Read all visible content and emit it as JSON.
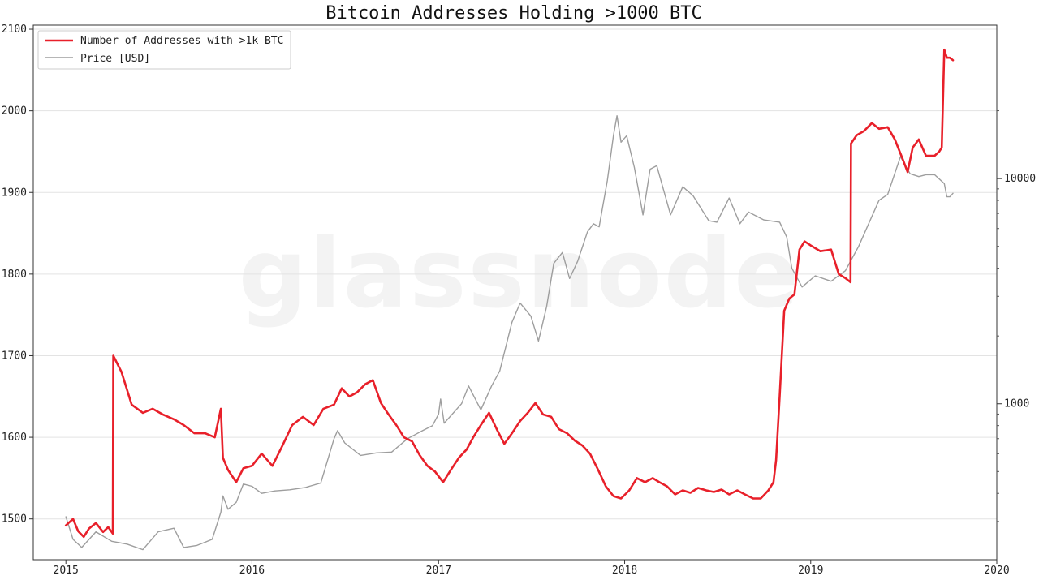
{
  "watermark": "glassnode",
  "chart_data": {
    "type": "line",
    "title": "Bitcoin Addresses Holding >1000 BTC",
    "xlabel": "",
    "ylabel": "",
    "x_ticks": [
      "2015",
      "2016",
      "2017",
      "2018",
      "2019",
      "2020"
    ],
    "xlim": [
      "2014-10-29",
      "2020-01-01"
    ],
    "y_left": {
      "lim": [
        1450,
        2105
      ],
      "ticks": [
        1500,
        1600,
        1700,
        1800,
        1900,
        2000,
        2100
      ]
    },
    "y_right": {
      "scale": "log",
      "lim": [
        203,
        48000
      ],
      "major_ticks": [
        1000,
        10000
      ],
      "minor_ticks": [
        300,
        400,
        500,
        600,
        700,
        800,
        900,
        2000,
        3000,
        4000,
        5000,
        6000,
        7000,
        8000,
        9000,
        20000
      ]
    },
    "grid": true,
    "legend_position": "top-left",
    "colors": {
      "addresses": "#e8202a",
      "price": "#9e9e9e"
    },
    "series": [
      {
        "name": "Number of Addresses with >1k BTC",
        "axis": "left",
        "x": [
          "2015-01-01",
          "2015-01-15",
          "2015-01-25",
          "2015-02-05",
          "2015-02-15",
          "2015-03-01",
          "2015-03-15",
          "2015-03-25",
          "2015-04-03",
          "2015-04-04",
          "2015-04-20",
          "2015-05-10",
          "2015-06-01",
          "2015-06-20",
          "2015-07-10",
          "2015-08-01",
          "2015-08-20",
          "2015-09-10",
          "2015-10-01",
          "2015-10-20",
          "2015-11-01",
          "2015-11-05",
          "2015-11-15",
          "2015-12-01",
          "2015-12-15",
          "2016-01-01",
          "2016-01-20",
          "2016-02-10",
          "2016-03-01",
          "2016-03-20",
          "2016-04-10",
          "2016-05-01",
          "2016-05-20",
          "2016-06-10",
          "2016-06-25",
          "2016-07-10",
          "2016-07-25",
          "2016-08-10",
          "2016-08-25",
          "2016-09-10",
          "2016-09-25",
          "2016-10-10",
          "2016-10-25",
          "2016-11-10",
          "2016-11-25",
          "2016-12-10",
          "2016-12-25",
          "2017-01-10",
          "2017-01-25",
          "2017-02-10",
          "2017-02-25",
          "2017-03-10",
          "2017-03-25",
          "2017-04-10",
          "2017-04-25",
          "2017-05-10",
          "2017-05-25",
          "2017-06-10",
          "2017-06-25",
          "2017-07-10",
          "2017-07-25",
          "2017-08-10",
          "2017-08-25",
          "2017-09-10",
          "2017-09-25",
          "2017-10-10",
          "2017-10-25",
          "2017-11-10",
          "2017-11-25",
          "2017-12-10",
          "2017-12-25",
          "2018-01-10",
          "2018-01-25",
          "2018-02-10",
          "2018-02-25",
          "2018-03-10",
          "2018-03-25",
          "2018-04-10",
          "2018-04-25",
          "2018-05-10",
          "2018-05-25",
          "2018-06-10",
          "2018-06-25",
          "2018-07-10",
          "2018-07-25",
          "2018-08-10",
          "2018-08-25",
          "2018-09-10",
          "2018-09-25",
          "2018-10-10",
          "2018-10-20",
          "2018-10-25",
          "2018-11-01",
          "2018-11-10",
          "2018-11-20",
          "2018-11-30",
          "2018-12-10",
          "2018-12-20",
          "2019-01-01",
          "2019-01-20",
          "2019-02-10",
          "2019-02-25",
          "2019-03-10",
          "2019-03-20",
          "2019-03-21",
          "2019-04-01",
          "2019-04-15",
          "2019-05-01",
          "2019-05-15",
          "2019-06-01",
          "2019-06-15",
          "2019-07-01",
          "2019-07-10",
          "2019-07-20",
          "2019-08-01",
          "2019-08-15",
          "2019-09-01",
          "2019-09-10",
          "2019-09-15",
          "2019-09-20",
          "2019-09-25",
          "2019-10-01",
          "2019-10-07"
        ],
        "y": [
          1492,
          1500,
          1485,
          1478,
          1488,
          1495,
          1484,
          1490,
          1482,
          1700,
          1680,
          1640,
          1630,
          1635,
          1628,
          1622,
          1615,
          1605,
          1605,
          1600,
          1635,
          1575,
          1560,
          1545,
          1562,
          1565,
          1580,
          1565,
          1590,
          1615,
          1625,
          1615,
          1635,
          1640,
          1660,
          1650,
          1655,
          1665,
          1670,
          1642,
          1628,
          1615,
          1600,
          1595,
          1578,
          1565,
          1558,
          1545,
          1560,
          1575,
          1585,
          1600,
          1615,
          1630,
          1610,
          1592,
          1605,
          1620,
          1630,
          1642,
          1628,
          1625,
          1610,
          1605,
          1596,
          1590,
          1580,
          1560,
          1540,
          1528,
          1525,
          1535,
          1550,
          1545,
          1550,
          1545,
          1540,
          1530,
          1535,
          1532,
          1538,
          1535,
          1533,
          1536,
          1530,
          1535,
          1530,
          1525,
          1525,
          1535,
          1545,
          1572,
          1650,
          1755,
          1770,
          1775,
          1830,
          1840,
          1835,
          1828,
          1830,
          1800,
          1795,
          1790,
          1960,
          1970,
          1975,
          1985,
          1978,
          1980,
          1965,
          1940,
          1925,
          1955,
          1965,
          1945,
          1945,
          1950,
          1955,
          2075,
          2065,
          2065,
          2062
        ]
      },
      {
        "name": "Price [USD]",
        "axis": "right",
        "x": [
          "2015-01-01",
          "2015-01-15",
          "2015-02-01",
          "2015-03-01",
          "2015-04-01",
          "2015-05-01",
          "2015-06-01",
          "2015-07-01",
          "2015-08-01",
          "2015-08-20",
          "2015-09-15",
          "2015-10-15",
          "2015-11-01",
          "2015-11-05",
          "2015-11-15",
          "2015-12-01",
          "2015-12-15",
          "2016-01-01",
          "2016-01-20",
          "2016-02-15",
          "2016-03-15",
          "2016-04-15",
          "2016-05-15",
          "2016-06-10",
          "2016-06-17",
          "2016-07-01",
          "2016-08-01",
          "2016-09-01",
          "2016-10-01",
          "2016-11-01",
          "2016-12-01",
          "2016-12-20",
          "2017-01-01",
          "2017-01-05",
          "2017-01-12",
          "2017-02-15",
          "2017-03-01",
          "2017-03-25",
          "2017-04-15",
          "2017-05-01",
          "2017-05-25",
          "2017-06-10",
          "2017-07-01",
          "2017-07-16",
          "2017-08-01",
          "2017-08-15",
          "2017-09-01",
          "2017-09-15",
          "2017-10-01",
          "2017-10-20",
          "2017-11-01",
          "2017-11-12",
          "2017-11-28",
          "2017-12-10",
          "2017-12-17",
          "2017-12-25",
          "2018-01-05",
          "2018-01-20",
          "2018-02-06",
          "2018-02-20",
          "2018-03-05",
          "2018-04-01",
          "2018-04-25",
          "2018-05-15",
          "2018-06-15",
          "2018-07-01",
          "2018-07-25",
          "2018-08-15",
          "2018-09-01",
          "2018-10-01",
          "2018-11-01",
          "2018-11-15",
          "2018-11-25",
          "2018-12-15",
          "2019-01-10",
          "2019-02-10",
          "2019-03-10",
          "2019-04-05",
          "2019-05-15",
          "2019-06-01",
          "2019-06-26",
          "2019-07-15",
          "2019-08-01",
          "2019-08-15",
          "2019-09-01",
          "2019-09-20",
          "2019-09-25",
          "2019-10-01",
          "2019-10-07"
        ],
        "y": [
          315,
          250,
          230,
          270,
          245,
          238,
          225,
          270,
          280,
          230,
          235,
          250,
          330,
          390,
          340,
          365,
          440,
          430,
          400,
          410,
          415,
          425,
          445,
          700,
          760,
          670,
          590,
          605,
          610,
          700,
          760,
          800,
          900,
          1050,
          820,
          1000,
          1200,
          940,
          1200,
          1400,
          2300,
          2800,
          2450,
          1900,
          2700,
          4200,
          4700,
          3600,
          4300,
          5800,
          6300,
          6100,
          9800,
          15500,
          19000,
          14500,
          15500,
          11200,
          6900,
          11000,
          11400,
          6900,
          9200,
          8400,
          6500,
          6400,
          8200,
          6300,
          7100,
          6550,
          6400,
          5500,
          4000,
          3300,
          3700,
          3500,
          3900,
          5000,
          8000,
          8500,
          12500,
          10500,
          10200,
          10400,
          10400,
          9500,
          8300,
          8300,
          8600
        ]
      }
    ]
  }
}
